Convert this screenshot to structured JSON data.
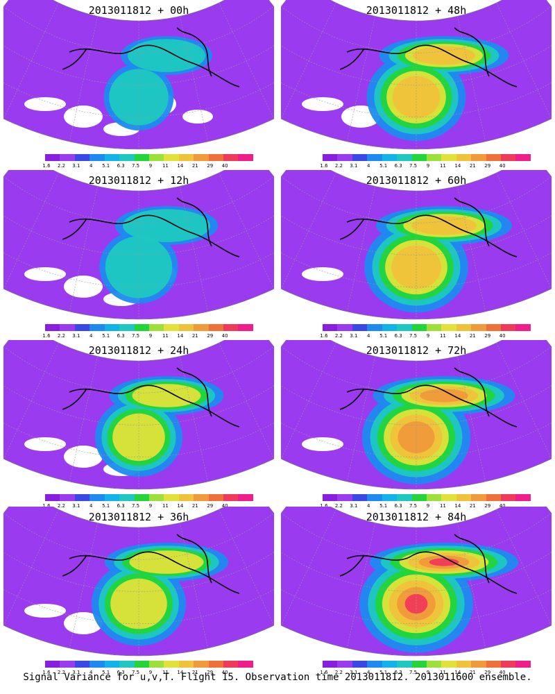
{
  "footer": "Signal Variance for u,v,T. Flight 15. Observation time 2013011812. 2013011600 ensemble.",
  "colorbar": {
    "colors": [
      "#8a1ee0",
      "#9b3bf0",
      "#3a48e8",
      "#1c8af0",
      "#11b3e8",
      "#1ec8c0",
      "#22d63a",
      "#9ee03a",
      "#e0e23a",
      "#f0c23a",
      "#f09a3a",
      "#f0703a",
      "#f03a5a",
      "#f01e8a"
    ],
    "labels": [
      "1.6",
      "2.2",
      "3.1",
      "4",
      "5.1",
      "6.3",
      "7.5",
      "9",
      "11",
      "14",
      "21",
      "29",
      "40"
    ]
  },
  "panels": [
    {
      "title": "2013011812 + 00h",
      "intensity": 0.2
    },
    {
      "title": "2013011812 + 48h",
      "intensity": 0.7
    },
    {
      "title": "2013011812 + 12h",
      "intensity": 0.35
    },
    {
      "title": "2013011812 + 60h",
      "intensity": 0.78
    },
    {
      "title": "2013011812 + 24h",
      "intensity": 0.5
    },
    {
      "title": "2013011812 + 72h",
      "intensity": 0.86
    },
    {
      "title": "2013011812 + 36h",
      "intensity": 0.62
    },
    {
      "title": "2013011812 + 84h",
      "intensity": 0.95
    }
  ]
}
